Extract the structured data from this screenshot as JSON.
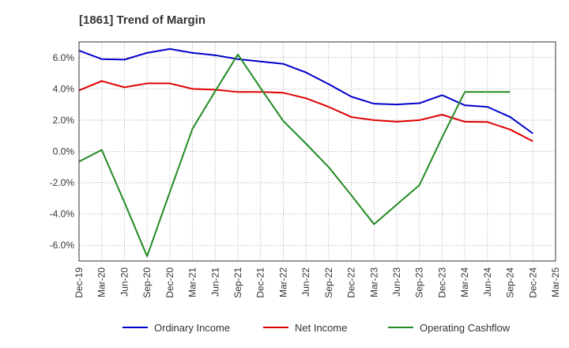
{
  "chart_data": {
    "type": "line",
    "title": "[1861]  Trend of Margin",
    "xlabel": "",
    "ylabel": "",
    "categories": [
      "Dec-19",
      "Mar-20",
      "Jun-20",
      "Sep-20",
      "Dec-20",
      "Mar-21",
      "Jun-21",
      "Sep-21",
      "Dec-21",
      "Mar-22",
      "Jun-22",
      "Sep-22",
      "Dec-22",
      "Mar-23",
      "Jun-23",
      "Sep-23",
      "Dec-23",
      "Mar-24",
      "Jun-24",
      "Sep-24",
      "Dec-24",
      "Mar-25"
    ],
    "ylim": [
      -7.0,
      7.0
    ],
    "yticks": [
      6.0,
      4.0,
      2.0,
      0.0,
      -2.0,
      -4.0,
      -6.0
    ],
    "ytick_labels": [
      "6.0%",
      "4.0%",
      "2.0%",
      "0.0%",
      "-2.0%",
      "-4.0%",
      "-6.0%"
    ],
    "grid": true,
    "legend_position": "bottom",
    "series": [
      {
        "name": "Ordinary Income",
        "color": "#0000cc",
        "values": [
          6.45,
          5.9,
          5.87,
          6.3,
          6.55,
          6.3,
          6.15,
          5.9,
          5.75,
          5.6,
          5.05,
          4.3,
          3.5,
          3.05,
          3.0,
          3.08,
          3.6,
          2.95,
          2.85,
          2.2,
          1.15,
          null
        ]
      },
      {
        "name": "Net Income",
        "color": "#e00000",
        "values": [
          3.9,
          4.5,
          4.1,
          4.35,
          4.35,
          4.0,
          3.95,
          3.8,
          3.8,
          3.75,
          3.4,
          2.85,
          2.2,
          2.0,
          1.9,
          2.0,
          2.35,
          1.9,
          1.88,
          1.4,
          0.65,
          null
        ]
      },
      {
        "name": "Operating Cashflow",
        "color": "#228b22",
        "values": [
          -0.65,
          0.1,
          -3.25,
          -6.7,
          -2.6,
          1.45,
          3.85,
          6.2,
          4.05,
          1.95,
          0.5,
          -1.0,
          -2.8,
          -4.65,
          -3.4,
          -2.15,
          0.9,
          3.8,
          3.8,
          3.8,
          null,
          null
        ]
      }
    ]
  }
}
